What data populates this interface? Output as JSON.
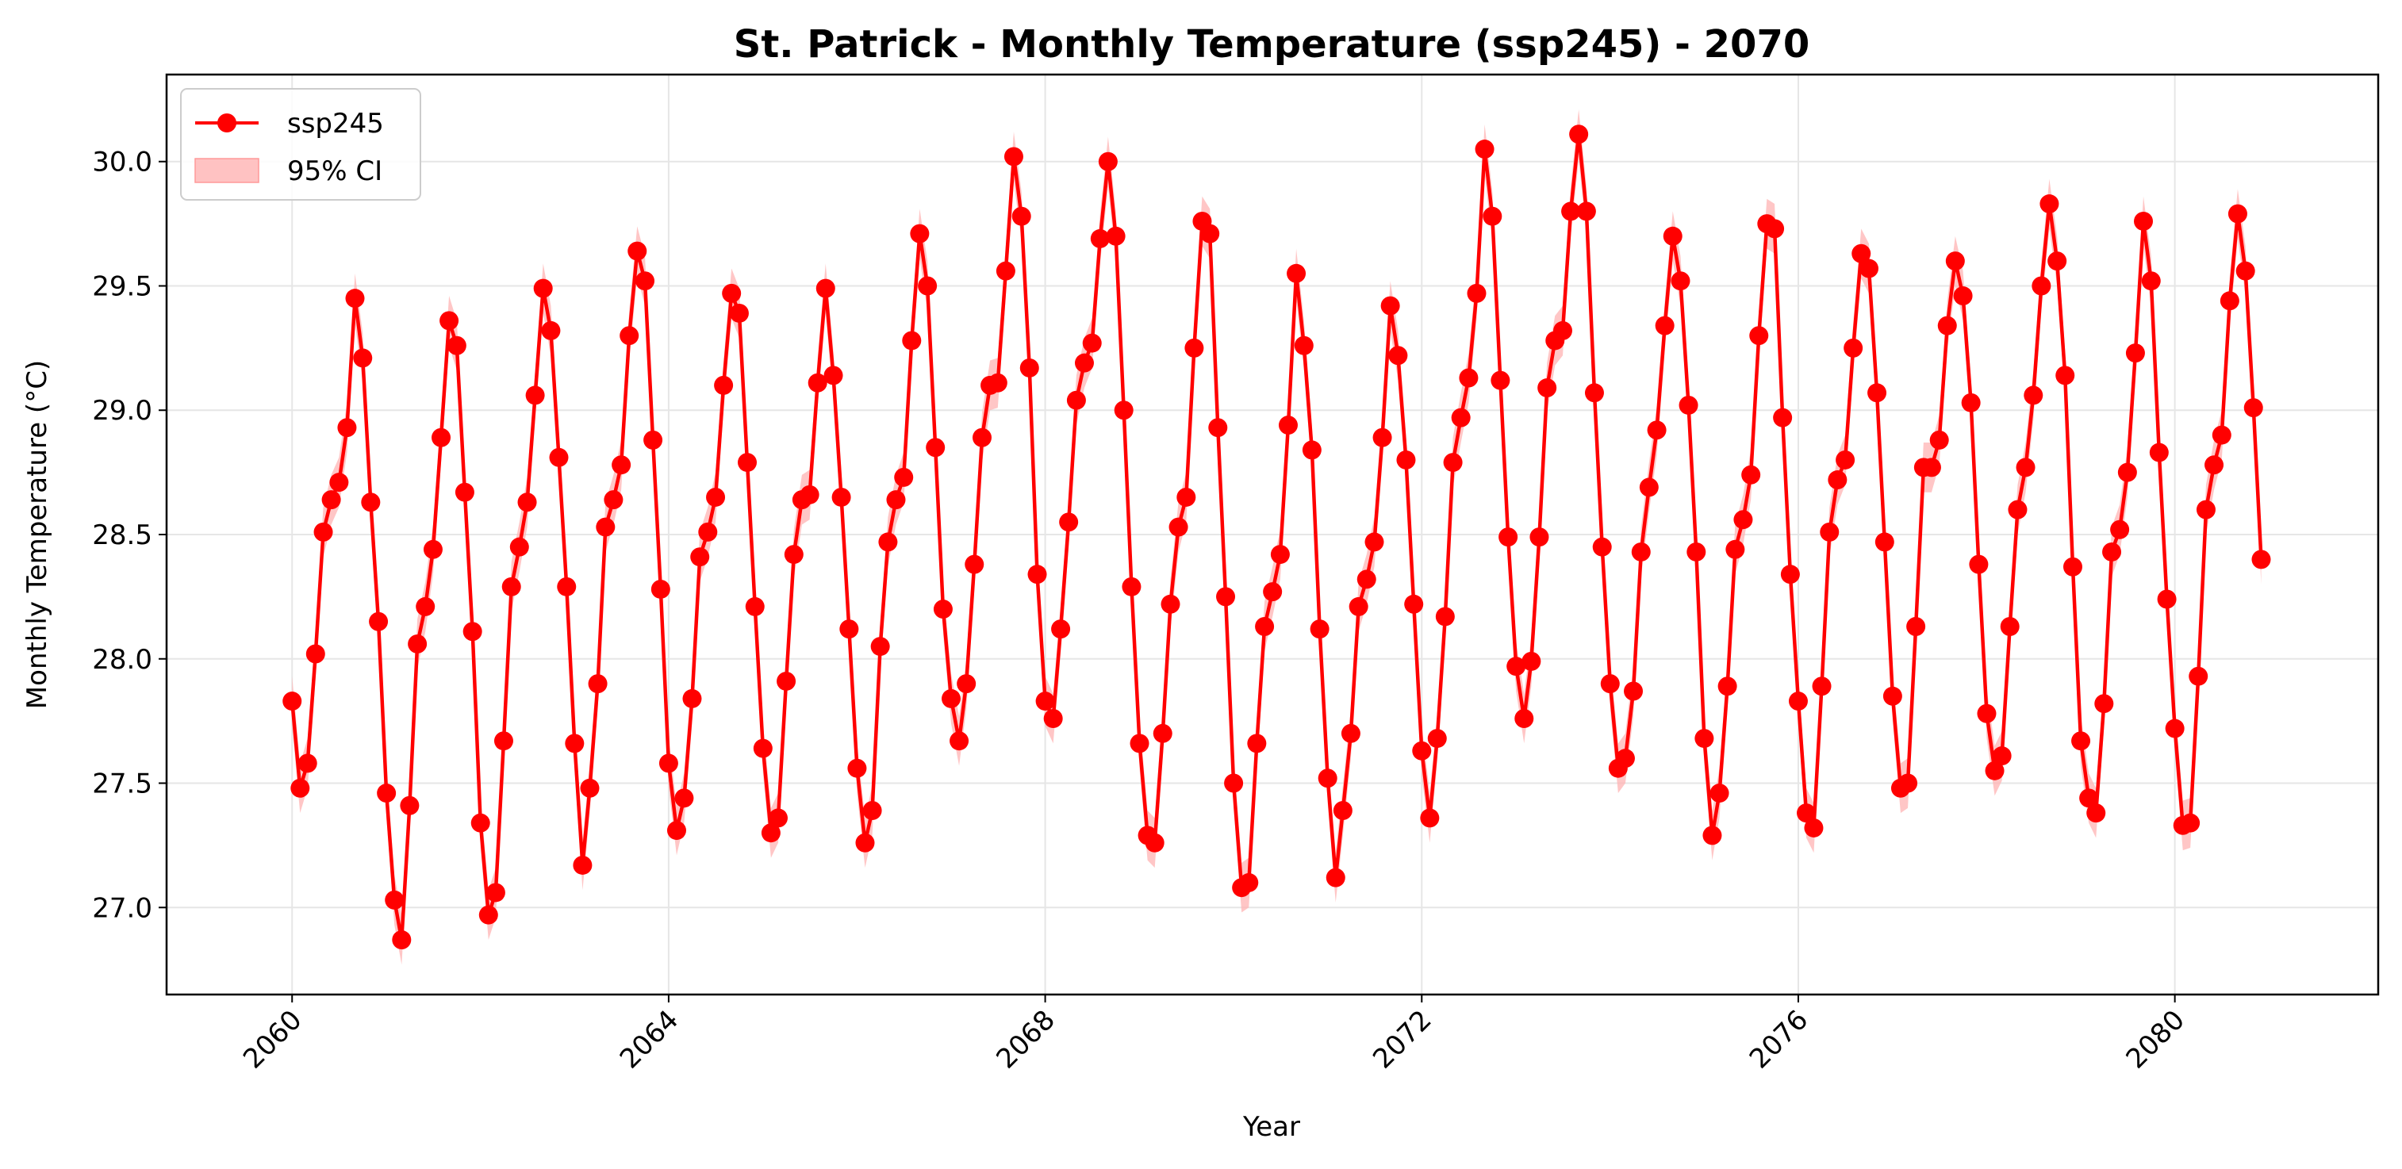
{
  "chart_data": {
    "type": "line",
    "title": "St. Patrick - Monthly Temperature (ssp245) - 2070",
    "xlabel": "Year",
    "ylabel": "Monthly Temperature (°C)",
    "xlim": [
      "2058-09-01",
      "2082-02-28"
    ],
    "ylim": [
      26.65,
      30.35
    ],
    "x_ticks": [
      {
        "date": "2060-01-01",
        "label": "2060"
      },
      {
        "date": "2064-01-01",
        "label": "2064"
      },
      {
        "date": "2068-01-01",
        "label": "2068"
      },
      {
        "date": "2072-01-01",
        "label": "2072"
      },
      {
        "date": "2076-01-01",
        "label": "2076"
      },
      {
        "date": "2080-01-01",
        "label": "2080"
      }
    ],
    "y_ticks": [
      27.0,
      27.5,
      28.0,
      28.5,
      29.0,
      29.5,
      30.0
    ],
    "grid": true,
    "legend_position": "top-left",
    "legend": {
      "series_label": "ssp245",
      "ci_label": "95% CI"
    },
    "colors": {
      "line": "#ff0000",
      "ci_fill": "#ffb3b3",
      "grid": "#e6e6e6"
    },
    "ci_halfwidth": 0.1,
    "series": [
      {
        "name": "ssp245",
        "start": "2060-01",
        "frequency": "monthly",
        "values": [
          27.83,
          27.48,
          27.58,
          28.02,
          28.51,
          28.64,
          28.71,
          28.93,
          29.45,
          29.21,
          28.63,
          28.15,
          27.46,
          27.03,
          26.87,
          27.41,
          28.06,
          28.21,
          28.44,
          28.89,
          29.36,
          29.26,
          28.67,
          28.11,
          27.34,
          26.97,
          27.06,
          27.67,
          28.29,
          28.45,
          28.63,
          29.06,
          29.49,
          29.32,
          28.81,
          28.29,
          27.66,
          27.17,
          27.48,
          27.9,
          28.53,
          28.64,
          28.78,
          29.3,
          29.64,
          29.52,
          28.88,
          28.28,
          27.58,
          27.31,
          27.44,
          27.84,
          28.41,
          28.51,
          28.65,
          29.1,
          29.47,
          29.39,
          28.79,
          28.21,
          27.64,
          27.3,
          27.36,
          27.91,
          28.42,
          28.64,
          28.66,
          29.11,
          29.49,
          29.14,
          28.65,
          28.12,
          27.56,
          27.26,
          27.39,
          28.05,
          28.47,
          28.64,
          28.73,
          29.28,
          29.71,
          29.5,
          28.85,
          28.2,
          27.84,
          27.67,
          27.9,
          28.38,
          28.89,
          29.1,
          29.11,
          29.56,
          30.02,
          29.78,
          29.17,
          28.34,
          27.83,
          27.76,
          28.12,
          28.55,
          29.04,
          29.19,
          29.27,
          29.69,
          30.0,
          29.7,
          29.0,
          28.29,
          27.66,
          27.29,
          27.26,
          27.7,
          28.22,
          28.53,
          28.65,
          29.25,
          29.76,
          29.71,
          28.93,
          28.25,
          27.5,
          27.08,
          27.1,
          27.66,
          28.13,
          28.27,
          28.42,
          28.94,
          29.55,
          29.26,
          28.84,
          28.12,
          27.52,
          27.12,
          27.39,
          27.7,
          28.21,
          28.32,
          28.47,
          28.89,
          29.42,
          29.22,
          28.8,
          28.22,
          27.63,
          27.36,
          27.68,
          28.17,
          28.79,
          28.97,
          29.13,
          29.47,
          30.05,
          29.78,
          29.12,
          28.49,
          27.97,
          27.76,
          27.99,
          28.49,
          29.09,
          29.28,
          29.32,
          29.8,
          30.11,
          29.8,
          29.07,
          28.45,
          27.9,
          27.56,
          27.6,
          27.87,
          28.43,
          28.69,
          28.92,
          29.34,
          29.7,
          29.52,
          29.02,
          28.43,
          27.68,
          27.29,
          27.46,
          27.89,
          28.44,
          28.56,
          28.74,
          29.3,
          29.75,
          29.73,
          28.97,
          28.34,
          27.83,
          27.38,
          27.32,
          27.89,
          28.51,
          28.72,
          28.8,
          29.25,
          29.63,
          29.57,
          29.07,
          28.47,
          27.85,
          27.48,
          27.5,
          28.13,
          28.77,
          28.77,
          28.88,
          29.34,
          29.6,
          29.46,
          29.03,
          28.38,
          27.78,
          27.55,
          27.61,
          28.13,
          28.6,
          28.77,
          29.06,
          29.5,
          29.83,
          29.6,
          29.14,
          28.37,
          27.67,
          27.44,
          27.38,
          27.82,
          28.43,
          28.52,
          28.75,
          29.23,
          29.76,
          29.52,
          28.83,
          28.24,
          27.72,
          27.33,
          27.34,
          27.93,
          28.6,
          28.78,
          28.9,
          29.44,
          29.79,
          29.56,
          29.01,
          28.4
        ]
      }
    ]
  }
}
